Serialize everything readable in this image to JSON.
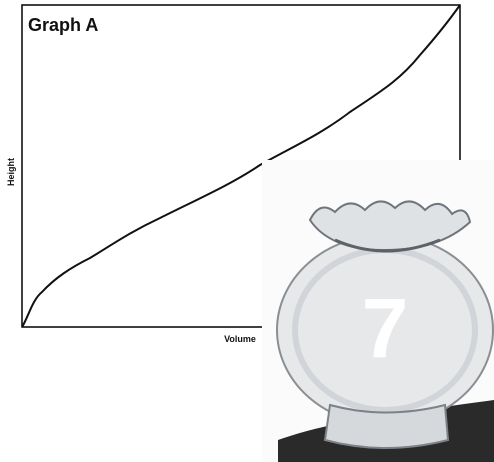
{
  "graph": {
    "title": "Graph A",
    "y_label": "Height",
    "x_label": "Volume"
  },
  "photo": {
    "label": "7"
  }
}
